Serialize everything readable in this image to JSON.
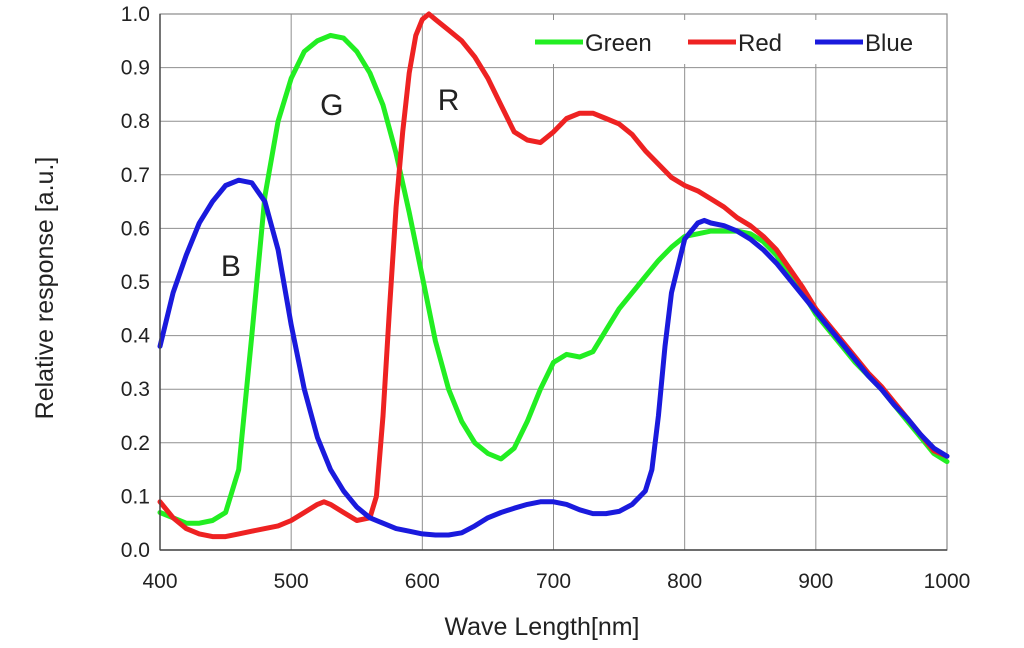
{
  "chart_data": {
    "type": "line",
    "title": "",
    "xlabel": "Wave Length[nm]",
    "ylabel": "Relative response [a.u.]",
    "xlim": [
      400,
      1000
    ],
    "ylim": [
      0.0,
      1.0
    ],
    "xticks": [
      400,
      500,
      600,
      700,
      800,
      900,
      1000
    ],
    "yticks": [
      "0.0",
      "0.1",
      "0.2",
      "0.3",
      "0.4",
      "0.5",
      "0.6",
      "0.7",
      "0.8",
      "0.9",
      "1.0"
    ],
    "grid": true,
    "legend_position": "top-right",
    "series": [
      {
        "name": "Green",
        "color": "#22ee22",
        "x": [
          400,
          410,
          420,
          430,
          440,
          450,
          460,
          470,
          480,
          490,
          500,
          510,
          520,
          530,
          540,
          550,
          560,
          570,
          580,
          590,
          600,
          610,
          620,
          630,
          640,
          650,
          660,
          670,
          680,
          690,
          700,
          710,
          720,
          730,
          740,
          750,
          760,
          770,
          780,
          790,
          800,
          810,
          820,
          830,
          840,
          850,
          860,
          870,
          880,
          890,
          900,
          910,
          920,
          930,
          940,
          950,
          960,
          970,
          980,
          990,
          1000
        ],
        "values": [
          0.07,
          0.06,
          0.05,
          0.05,
          0.055,
          0.07,
          0.15,
          0.4,
          0.66,
          0.8,
          0.88,
          0.93,
          0.95,
          0.96,
          0.955,
          0.93,
          0.89,
          0.83,
          0.74,
          0.63,
          0.51,
          0.39,
          0.3,
          0.24,
          0.2,
          0.18,
          0.17,
          0.19,
          0.24,
          0.3,
          0.35,
          0.365,
          0.36,
          0.37,
          0.41,
          0.45,
          0.48,
          0.51,
          0.54,
          0.565,
          0.585,
          0.59,
          0.595,
          0.595,
          0.595,
          0.59,
          0.575,
          0.55,
          0.51,
          0.48,
          0.44,
          0.41,
          0.38,
          0.35,
          0.325,
          0.3,
          0.27,
          0.24,
          0.21,
          0.18,
          0.165
        ]
      },
      {
        "name": "Red",
        "color": "#ee2222",
        "x": [
          400,
          410,
          420,
          430,
          440,
          450,
          460,
          470,
          480,
          490,
          500,
          510,
          520,
          525,
          530,
          540,
          550,
          560,
          565,
          570,
          575,
          580,
          585,
          590,
          595,
          600,
          605,
          610,
          620,
          630,
          640,
          650,
          660,
          670,
          680,
          690,
          700,
          710,
          720,
          730,
          740,
          750,
          760,
          770,
          780,
          790,
          800,
          810,
          820,
          830,
          840,
          850,
          860,
          870,
          880,
          890,
          900,
          910,
          920,
          930,
          940,
          950,
          960,
          970,
          980,
          990,
          1000
        ],
        "values": [
          0.09,
          0.06,
          0.04,
          0.03,
          0.025,
          0.025,
          0.03,
          0.035,
          0.04,
          0.045,
          0.055,
          0.07,
          0.085,
          0.09,
          0.085,
          0.07,
          0.055,
          0.06,
          0.1,
          0.25,
          0.45,
          0.64,
          0.78,
          0.89,
          0.96,
          0.99,
          1.0,
          0.99,
          0.97,
          0.95,
          0.92,
          0.88,
          0.83,
          0.78,
          0.765,
          0.76,
          0.78,
          0.805,
          0.815,
          0.815,
          0.805,
          0.795,
          0.775,
          0.745,
          0.72,
          0.695,
          0.68,
          0.67,
          0.655,
          0.64,
          0.62,
          0.605,
          0.585,
          0.56,
          0.525,
          0.49,
          0.45,
          0.42,
          0.39,
          0.36,
          0.33,
          0.305,
          0.275,
          0.245,
          0.215,
          0.185,
          0.175
        ]
      },
      {
        "name": "Blue",
        "color": "#1a1add",
        "x": [
          400,
          410,
          420,
          430,
          440,
          450,
          460,
          470,
          480,
          490,
          500,
          510,
          520,
          530,
          540,
          550,
          560,
          570,
          580,
          590,
          600,
          610,
          620,
          630,
          640,
          650,
          660,
          670,
          680,
          690,
          700,
          710,
          720,
          730,
          740,
          750,
          760,
          770,
          775,
          780,
          785,
          790,
          800,
          810,
          815,
          820,
          830,
          840,
          850,
          860,
          870,
          880,
          890,
          900,
          910,
          920,
          930,
          940,
          950,
          960,
          970,
          980,
          990,
          1000
        ],
        "values": [
          0.38,
          0.48,
          0.55,
          0.61,
          0.65,
          0.68,
          0.69,
          0.685,
          0.65,
          0.56,
          0.42,
          0.3,
          0.21,
          0.15,
          0.11,
          0.08,
          0.06,
          0.05,
          0.04,
          0.035,
          0.03,
          0.028,
          0.028,
          0.032,
          0.045,
          0.06,
          0.07,
          0.078,
          0.085,
          0.09,
          0.09,
          0.085,
          0.075,
          0.068,
          0.068,
          0.072,
          0.085,
          0.11,
          0.15,
          0.25,
          0.38,
          0.48,
          0.58,
          0.61,
          0.615,
          0.61,
          0.605,
          0.595,
          0.58,
          0.56,
          0.535,
          0.505,
          0.475,
          0.445,
          0.415,
          0.385,
          0.355,
          0.325,
          0.3,
          0.27,
          0.245,
          0.215,
          0.19,
          0.175
        ]
      }
    ],
    "annotations": [
      {
        "text": "G",
        "x": 531,
        "y": 0.83
      },
      {
        "text": "R",
        "x": 620,
        "y": 0.84
      },
      {
        "text": "B",
        "x": 454,
        "y": 0.53
      }
    ]
  }
}
